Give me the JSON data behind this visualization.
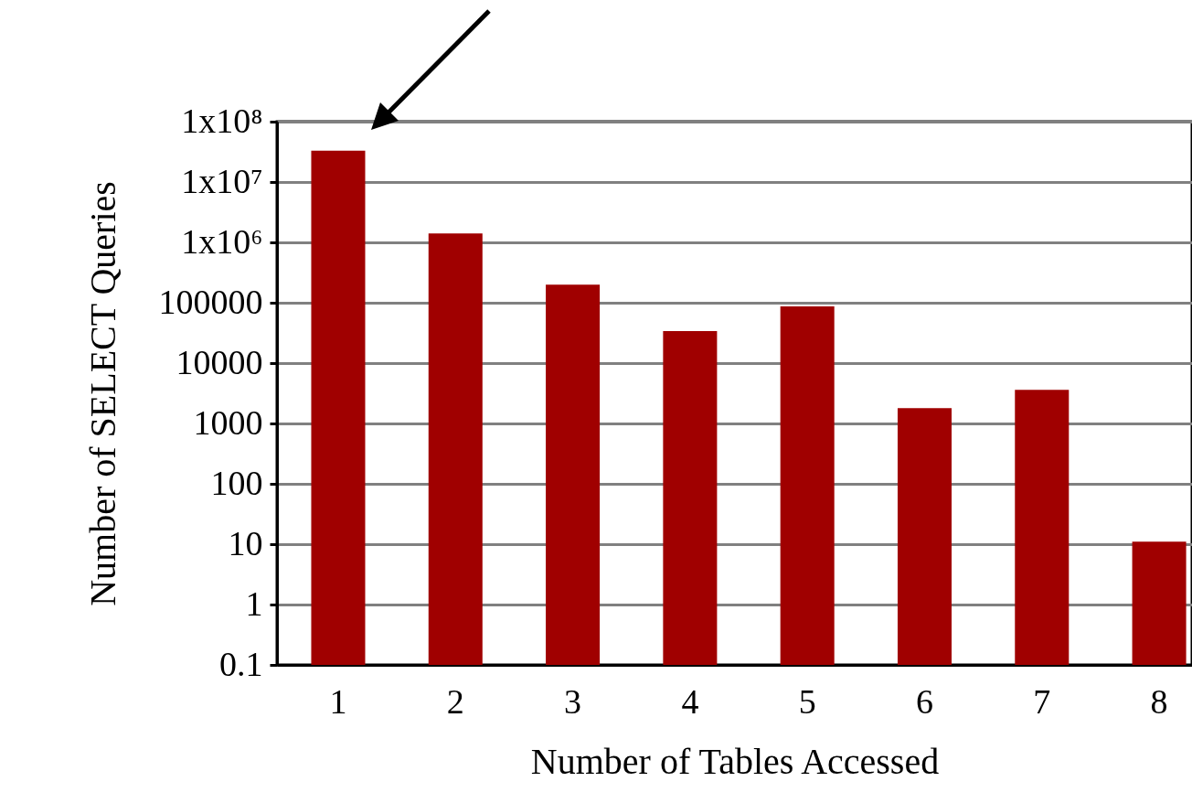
{
  "chart_data": {
    "type": "bar",
    "xlabel": "Number of Tables Accessed",
    "ylabel": "Number of SELECT Queries",
    "categories": [
      "1",
      "2",
      "3",
      "4",
      "5",
      "6",
      "7",
      "8"
    ],
    "values": [
      33000000,
      1400000,
      200000,
      34000,
      87000,
      1800,
      3600,
      11
    ],
    "color": "#a00000",
    "log": true,
    "ylim": [
      0.1,
      100000000
    ],
    "yticks": [
      0.1,
      1,
      10,
      100,
      1000,
      10000,
      100000,
      {
        "value": 1000000,
        "label": "1x10⁶"
      },
      {
        "value": 10000000,
        "label": "1x10⁷"
      },
      {
        "value": 100000000,
        "label": "1x10⁸"
      }
    ],
    "grid": "y"
  }
}
